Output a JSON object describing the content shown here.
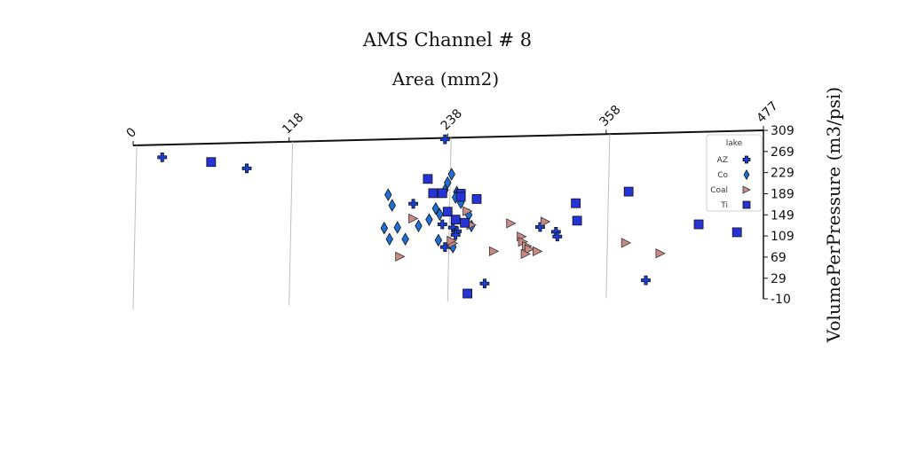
{
  "chart_data": {
    "type": "scatter",
    "title": "AMS Channel # 8",
    "xlabel": "Area (mm2)",
    "ylabel": "VolumePerPressure (m3/psi)",
    "xlim": [
      0,
      477
    ],
    "ylim": [
      -10,
      309
    ],
    "x_ticks": [
      "0",
      "118",
      "238",
      "358",
      "477"
    ],
    "y_ticks": [
      "309",
      "269",
      "229",
      "189",
      "149",
      "109",
      "69",
      "29",
      "-10"
    ],
    "x_grid": true,
    "legend": {
      "title": "lake",
      "placement": "top-right"
    },
    "series": [
      {
        "name": "AZ",
        "marker": "plus",
        "color": "#1a3fd8",
        "points": [
          [
            22,
            258
          ],
          [
            86,
            237
          ],
          [
            236,
            292
          ],
          [
            212,
            170
          ],
          [
            234,
            131
          ],
          [
            242,
            125
          ],
          [
            245,
            118
          ],
          [
            244,
            111
          ],
          [
            236,
            88
          ],
          [
            308,
            126
          ],
          [
            320,
            117
          ],
          [
            321,
            108
          ],
          [
            266,
            19
          ],
          [
            388,
            25
          ]
        ]
      },
      {
        "name": "Co",
        "marker": "diamond",
        "color": "#1f6fd6",
        "points": [
          [
            193,
            187
          ],
          [
            196,
            167
          ],
          [
            200,
            125
          ],
          [
            206,
            103
          ],
          [
            190,
            124
          ],
          [
            194,
            103
          ],
          [
            216,
            128
          ],
          [
            229,
            161
          ],
          [
            236,
            196
          ],
          [
            238,
            210
          ],
          [
            241,
            226
          ],
          [
            245,
            192
          ],
          [
            248,
            172
          ],
          [
            224,
            140
          ],
          [
            232,
            150
          ],
          [
            254,
            149
          ],
          [
            256,
            128
          ],
          [
            244,
            182
          ],
          [
            231,
            101
          ],
          [
            240,
            95
          ],
          [
            242,
            88
          ]
        ]
      },
      {
        "name": "Coal",
        "marker": "triangle-right",
        "color": "#c98a86",
        "points": [
          [
            202,
            70
          ],
          [
            212,
            142
          ],
          [
            242,
            95
          ],
          [
            253,
            156
          ],
          [
            256,
            130
          ],
          [
            273,
            80
          ],
          [
            286,
            133
          ],
          [
            294,
            108
          ],
          [
            295,
            98
          ],
          [
            298,
            90
          ],
          [
            300,
            84
          ],
          [
            306,
            80
          ],
          [
            312,
            136
          ],
          [
            373,
            96
          ],
          [
            399,
            76
          ],
          [
            241,
            100
          ],
          [
            297,
            75
          ]
        ]
      },
      {
        "name": "Ti",
        "marker": "square",
        "color": "#2633d6",
        "points": [
          [
            59,
            249
          ],
          [
            223,
            217
          ],
          [
            227,
            190
          ],
          [
            234,
            190
          ],
          [
            248,
            189
          ],
          [
            238,
            155
          ],
          [
            248,
            183
          ],
          [
            251,
            134
          ],
          [
            260,
            179
          ],
          [
            253,
            0
          ],
          [
            335,
            171
          ],
          [
            336,
            138
          ],
          [
            375,
            193
          ],
          [
            428,
            131
          ],
          [
            457,
            116
          ],
          [
            244,
            140
          ]
        ]
      }
    ]
  }
}
